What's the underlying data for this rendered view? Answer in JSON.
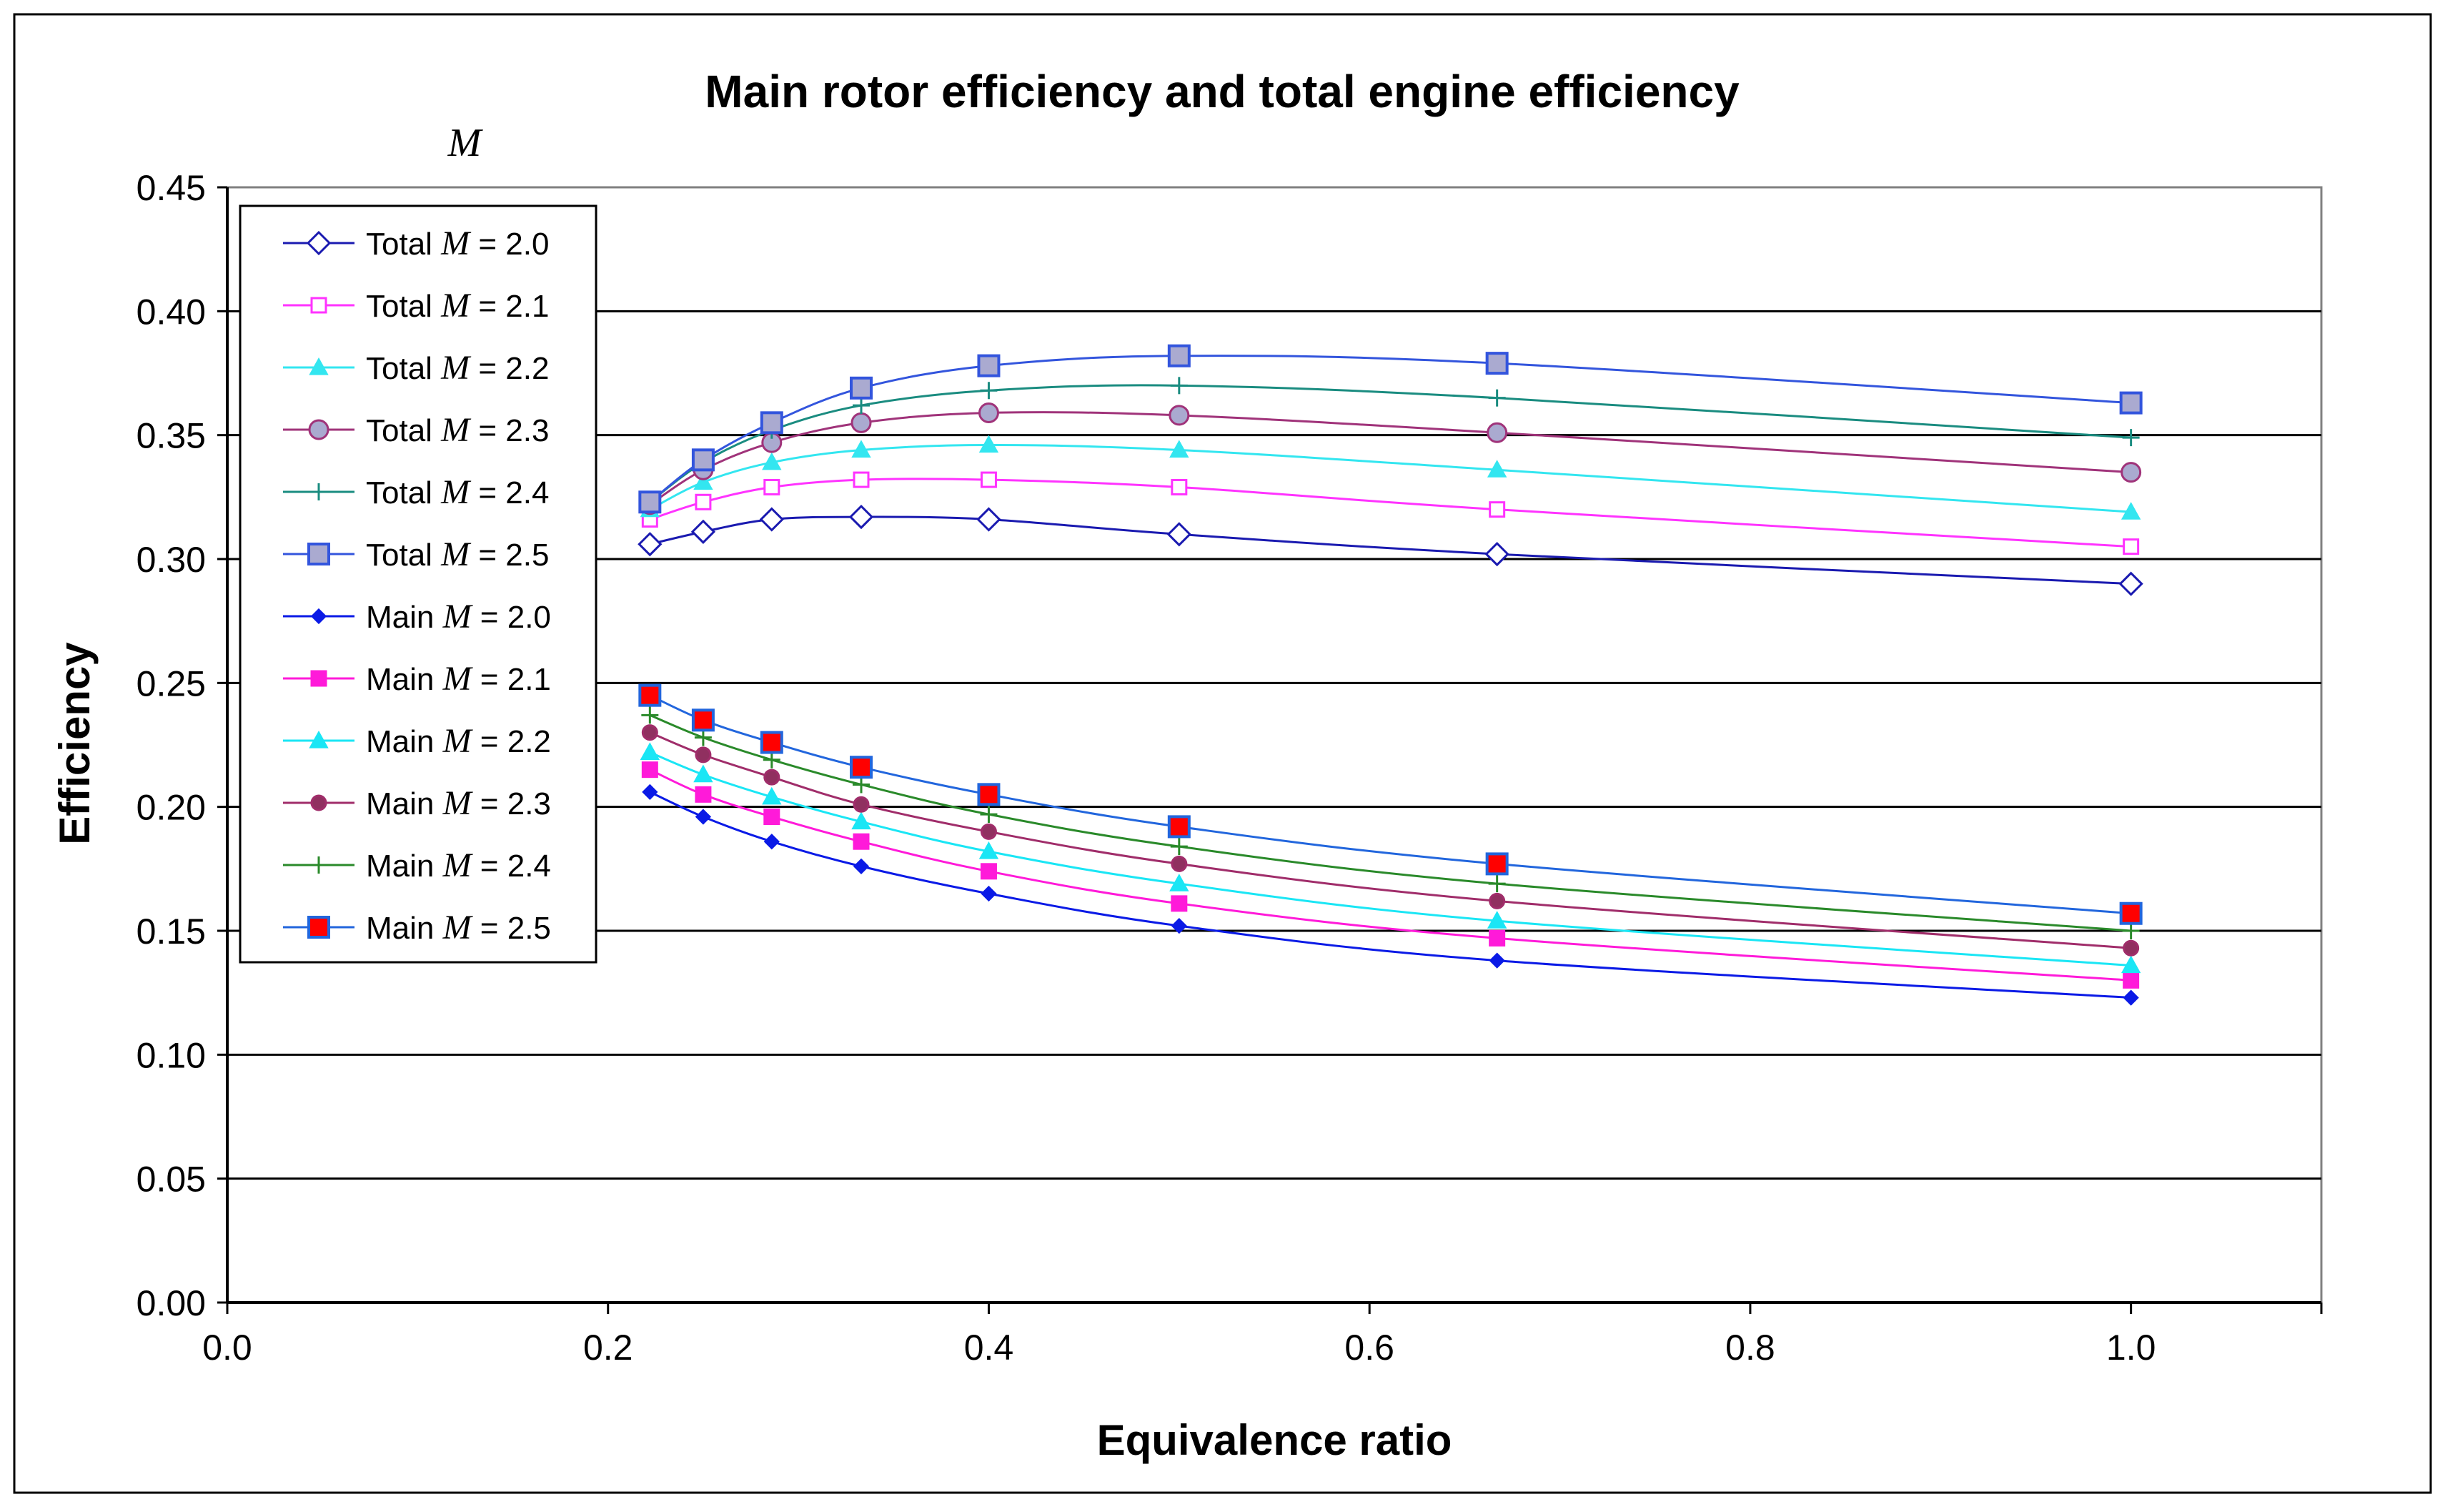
{
  "chart_data": {
    "type": "line",
    "title": "Main rotor efficiency and total engine efficiency",
    "subtitle_symbol": "M",
    "xlabel": "Equivalence ratio",
    "ylabel": "Efficiency",
    "xlim": [
      0.0,
      1.1
    ],
    "ylim": [
      0.0,
      0.45
    ],
    "x_ticks": [
      "0.0",
      "0.2",
      "0.4",
      "0.6",
      "0.8",
      "1.0"
    ],
    "x_tick_values": [
      0.0,
      0.2,
      0.4,
      0.6,
      0.8,
      1.0
    ],
    "y_ticks": [
      "0.00",
      "0.05",
      "0.10",
      "0.15",
      "0.20",
      "0.25",
      "0.30",
      "0.35",
      "0.40",
      "0.45"
    ],
    "y_tick_values": [
      0.0,
      0.05,
      0.1,
      0.15,
      0.2,
      0.25,
      0.3,
      0.35,
      0.4,
      0.45
    ],
    "grid": "horizontal",
    "legend_position": "top-left",
    "x": [
      0.222,
      0.25,
      0.286,
      0.333,
      0.4,
      0.5,
      0.667,
      1.0
    ],
    "series": [
      {
        "name": "Total M = 2.0",
        "prefix": "Total",
        "mach": "M",
        "suffix": " = 2.0",
        "color": "#1a1ab0",
        "marker": "diamond-open",
        "values": [
          0.306,
          0.311,
          0.316,
          0.317,
          0.316,
          0.31,
          0.302,
          0.29
        ]
      },
      {
        "name": "Total M = 2.1",
        "prefix": "Total",
        "mach": "M",
        "suffix": " = 2.1",
        "color": "#ff33ff",
        "marker": "square-open",
        "values": [
          0.316,
          0.323,
          0.329,
          0.332,
          0.332,
          0.329,
          0.32,
          0.305
        ]
      },
      {
        "name": "Total M = 2.2",
        "prefix": "Total",
        "mach": "M",
        "suffix": " = 2.2",
        "color": "#33e6f0",
        "marker": "triangle",
        "values": [
          0.32,
          0.331,
          0.339,
          0.344,
          0.346,
          0.344,
          0.336,
          0.319
        ]
      },
      {
        "name": "Total M = 2.3",
        "prefix": "Total",
        "mach": "M",
        "suffix": " = 2.3",
        "color": "#a0337a",
        "marker": "circle-gray",
        "values": [
          0.322,
          0.336,
          0.347,
          0.355,
          0.359,
          0.358,
          0.351,
          0.335
        ]
      },
      {
        "name": "Total M = 2.4",
        "prefix": "Total",
        "mach": "M",
        "suffix": " = 2.4",
        "color": "#1a8c80",
        "marker": "plus",
        "values": [
          0.323,
          0.339,
          0.352,
          0.362,
          0.368,
          0.37,
          0.365,
          0.349
        ]
      },
      {
        "name": "Total M = 2.5",
        "prefix": "Total",
        "mach": "M",
        "suffix": " = 2.5",
        "color": "#3355dd",
        "marker": "square-gray",
        "values": [
          0.323,
          0.34,
          0.355,
          0.369,
          0.378,
          0.382,
          0.379,
          0.363
        ]
      },
      {
        "name": "Main M = 2.0",
        "prefix": "Main",
        "mach": "M",
        "suffix": " = 2.0",
        "color": "#0a1ae6",
        "marker": "diamond-filled",
        "values": [
          0.206,
          0.196,
          0.186,
          0.176,
          0.165,
          0.152,
          0.138,
          0.123
        ]
      },
      {
        "name": "Main M = 2.1",
        "prefix": "Main",
        "mach": "M",
        "suffix": " = 2.1",
        "color": "#ff1ad9",
        "marker": "square-filled",
        "values": [
          0.215,
          0.205,
          0.196,
          0.186,
          0.174,
          0.161,
          0.147,
          0.13
        ]
      },
      {
        "name": "Main M = 2.2",
        "prefix": "Main",
        "mach": "M",
        "suffix": " = 2.2",
        "color": "#1ae6f5",
        "marker": "triangle",
        "values": [
          0.222,
          0.213,
          0.204,
          0.194,
          0.182,
          0.169,
          0.154,
          0.136
        ]
      },
      {
        "name": "Main M = 2.3",
        "prefix": "Main",
        "mach": "M",
        "suffix": " = 2.3",
        "color": "#a02d6a",
        "marker": "circle-dark",
        "values": [
          0.23,
          0.221,
          0.212,
          0.201,
          0.19,
          0.177,
          0.162,
          0.143
        ]
      },
      {
        "name": "Main M = 2.4",
        "prefix": "Main",
        "mach": "M",
        "suffix": " = 2.4",
        "color": "#2a8a2a",
        "marker": "plus",
        "values": [
          0.237,
          0.228,
          0.219,
          0.209,
          0.197,
          0.184,
          0.169,
          0.15
        ]
      },
      {
        "name": "Main M = 2.5",
        "prefix": "Main",
        "mach": "M",
        "suffix": " = 2.5",
        "color": "#2266dd",
        "marker": "square-red",
        "values": [
          0.245,
          0.235,
          0.226,
          0.216,
          0.205,
          0.192,
          0.177,
          0.157
        ]
      }
    ]
  },
  "styles": {
    "background": "#ffffff",
    "frame": "#000000",
    "plot_border": "#808080",
    "grid": "#000000",
    "marker_gray": "#aaaad0",
    "marker_red": "#ff0000",
    "marker_dark": "#903060"
  }
}
